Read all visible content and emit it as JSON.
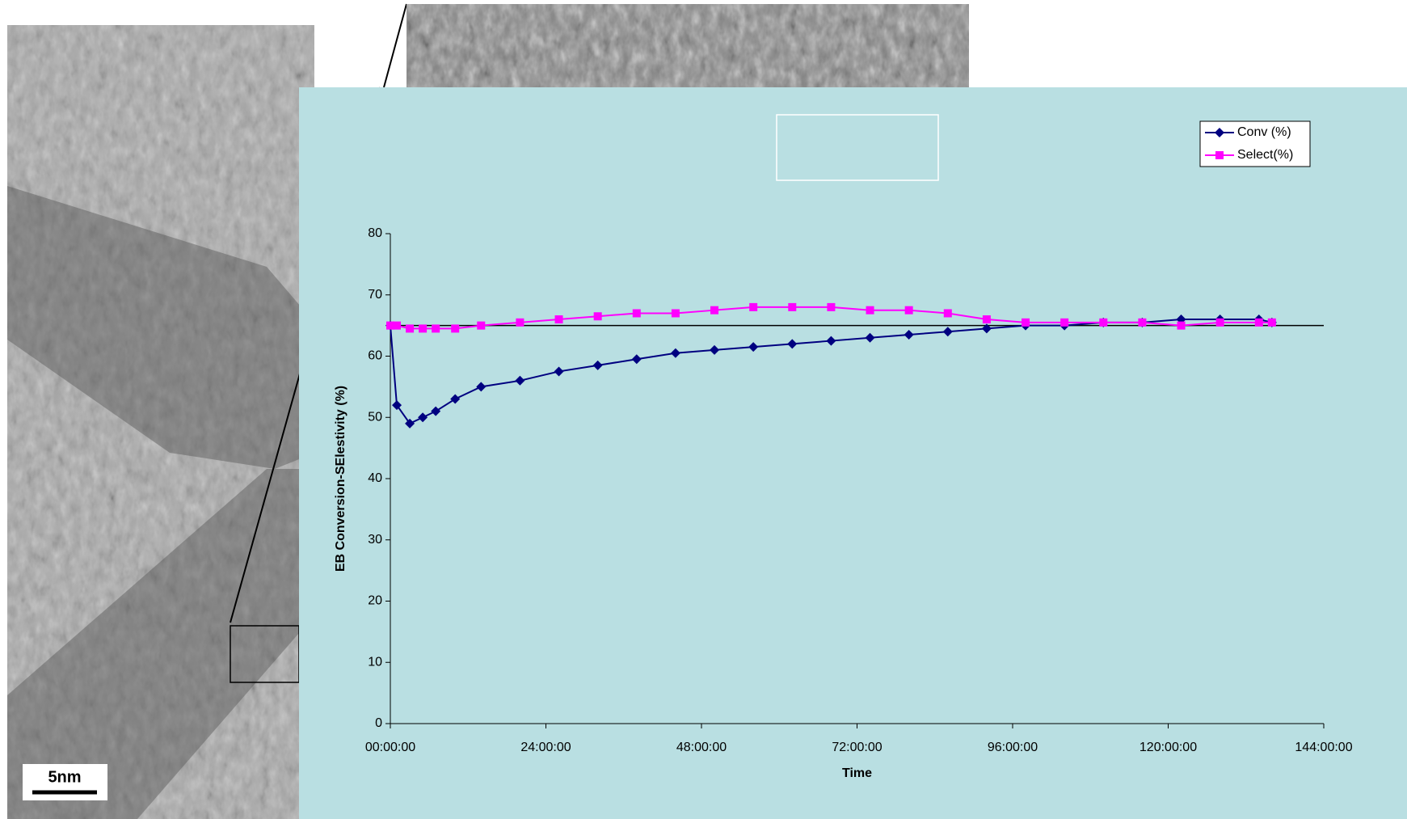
{
  "scale_bar": "5nm",
  "chart_data": {
    "type": "line",
    "x_label": "Time",
    "y_label": "EB Conversion-SElestivity (%)",
    "x": [
      0,
      1,
      3,
      5,
      7,
      10,
      14,
      20,
      26,
      32,
      38,
      44,
      50,
      56,
      62,
      68,
      74,
      80,
      86,
      92,
      98,
      104,
      110,
      116,
      122,
      128,
      134,
      136
    ],
    "series": [
      {
        "name": "Conv (%)",
        "color": "#000080",
        "marker": "diamond",
        "values": [
          65,
          52,
          49,
          50,
          51,
          53,
          55,
          56,
          57.5,
          58.5,
          59.5,
          60.5,
          61,
          61.5,
          62,
          62.5,
          63,
          63.5,
          64,
          64.5,
          65,
          65,
          65.5,
          65.5,
          66,
          66,
          66,
          65.5
        ]
      },
      {
        "name": "Select(%)",
        "color": "#ff00ff",
        "marker": "square",
        "values": [
          65,
          65,
          64.5,
          64.5,
          64.5,
          64.5,
          65,
          65.5,
          66,
          66.5,
          67,
          67,
          67.5,
          68,
          68,
          68,
          67.5,
          67.5,
          67,
          66,
          65.5,
          65.5,
          65.5,
          65.5,
          65,
          65.5,
          65.5,
          65.5
        ]
      }
    ],
    "reference_line": 65,
    "xlim": [
      0,
      144
    ],
    "xticks": [
      {
        "value": 0,
        "label": "00:00:00"
      },
      {
        "value": 24,
        "label": "24:00:00"
      },
      {
        "value": 48,
        "label": "48:00:00"
      },
      {
        "value": 72,
        "label": "72:00:00"
      },
      {
        "value": 96,
        "label": "96:00:00"
      },
      {
        "value": 120,
        "label": "120:00:00"
      },
      {
        "value": 144,
        "label": "144:00:00"
      }
    ],
    "ylim": [
      0,
      80
    ],
    "yticks": [
      0,
      10,
      20,
      30,
      40,
      50,
      60,
      70,
      80
    ],
    "legend": "top-right"
  }
}
